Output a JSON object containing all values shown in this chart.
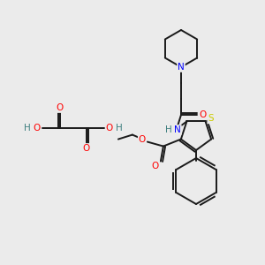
{
  "bg_color": "#ebebeb",
  "atom_colors": {
    "C": "#000000",
    "N": "#0000ff",
    "O": "#ff0000",
    "S": "#cccc00",
    "H": "#408080"
  },
  "bond_color": "#1a1a1a",
  "bond_width": 1.4,
  "figsize": [
    3.0,
    3.0
  ],
  "dpi": 100
}
